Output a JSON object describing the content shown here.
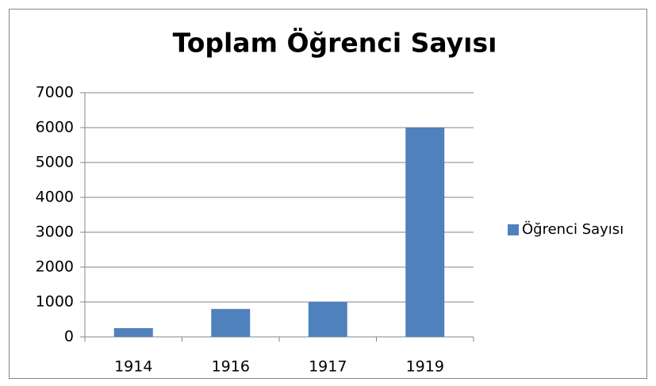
{
  "chart_data": {
    "type": "bar",
    "title": "Toplam Öğrenci Sayısı",
    "categories": [
      "1914",
      "1916",
      "1917",
      "1919"
    ],
    "series": [
      {
        "name": "Öğrenci Sayısı",
        "color": "#4f81bd",
        "values": [
          250,
          800,
          1000,
          6000
        ]
      }
    ],
    "ylim": [
      0,
      7000
    ],
    "yticks": [
      0,
      1000,
      2000,
      3000,
      4000,
      5000,
      6000,
      7000
    ],
    "grid": true,
    "legend": "right"
  }
}
